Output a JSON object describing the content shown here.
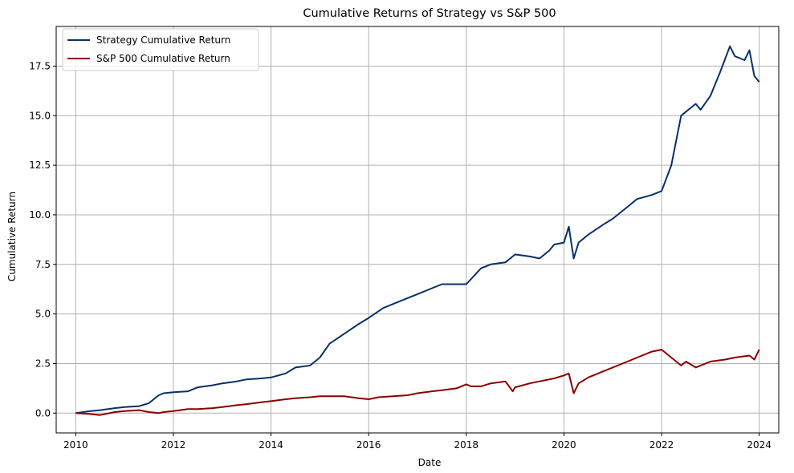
{
  "chart_data": {
    "type": "line",
    "title": "Cumulative Returns of Strategy vs S&P 500",
    "xlabel": "Date",
    "ylabel": "Cumulative Return",
    "xlim": [
      2009.6,
      2024.4
    ],
    "ylim": [
      -1.0,
      19.5
    ],
    "x_ticks": [
      2010,
      2012,
      2014,
      2016,
      2018,
      2020,
      2022,
      2024
    ],
    "x_tick_labels": [
      "2010",
      "2012",
      "2014",
      "2016",
      "2018",
      "2020",
      "2022",
      "2024"
    ],
    "y_ticks": [
      0.0,
      2.5,
      5.0,
      7.5,
      10.0,
      12.5,
      15.0,
      17.5
    ],
    "y_tick_labels": [
      "0.0",
      "2.5",
      "5.0",
      "7.5",
      "10.0",
      "12.5",
      "15.0",
      "17.5"
    ],
    "grid": true,
    "legend_position": "top-left",
    "series": [
      {
        "name": "Strategy Cumulative Return",
        "color": "#08306b",
        "x": [
          2010.0,
          2010.3,
          2010.5,
          2010.8,
          2011.0,
          2011.3,
          2011.5,
          2011.7,
          2011.8,
          2012.0,
          2012.3,
          2012.5,
          2012.8,
          2013.0,
          2013.3,
          2013.5,
          2013.8,
          2014.0,
          2014.3,
          2014.5,
          2014.8,
          2015.0,
          2015.2,
          2015.5,
          2015.8,
          2016.0,
          2016.3,
          2016.5,
          2016.8,
          2017.0,
          2017.3,
          2017.5,
          2017.8,
          2018.0,
          2018.3,
          2018.5,
          2018.8,
          2019.0,
          2019.3,
          2019.5,
          2019.7,
          2019.8,
          2020.0,
          2020.1,
          2020.2,
          2020.3,
          2020.5,
          2020.8,
          2021.0,
          2021.3,
          2021.5,
          2021.8,
          2022.0,
          2022.2,
          2022.4,
          2022.5,
          2022.7,
          2022.8,
          2023.0,
          2023.2,
          2023.4,
          2023.5,
          2023.7,
          2023.8,
          2023.9,
          2024.0
        ],
        "values": [
          0.0,
          0.1,
          0.15,
          0.25,
          0.3,
          0.35,
          0.5,
          0.9,
          1.0,
          1.05,
          1.1,
          1.3,
          1.4,
          1.5,
          1.6,
          1.7,
          1.75,
          1.8,
          2.0,
          2.3,
          2.4,
          2.8,
          3.5,
          4.0,
          4.5,
          4.8,
          5.3,
          5.5,
          5.8,
          6.0,
          6.3,
          6.5,
          6.5,
          6.5,
          7.3,
          7.5,
          7.6,
          8.0,
          7.9,
          7.8,
          8.2,
          8.5,
          8.6,
          9.4,
          7.8,
          8.6,
          9.0,
          9.5,
          9.8,
          10.4,
          10.8,
          11.0,
          11.2,
          12.5,
          15.0,
          15.2,
          15.6,
          15.3,
          16.0,
          17.2,
          18.5,
          18.0,
          17.8,
          18.3,
          17.0,
          16.7
        ]
      },
      {
        "name": "S&P 500 Cumulative Return",
        "color": "#8b0000",
        "x": [
          2010.0,
          2010.3,
          2010.5,
          2010.8,
          2011.0,
          2011.3,
          2011.5,
          2011.7,
          2011.8,
          2012.0,
          2012.3,
          2012.5,
          2012.8,
          2013.0,
          2013.3,
          2013.5,
          2013.8,
          2014.0,
          2014.3,
          2014.5,
          2014.8,
          2015.0,
          2015.3,
          2015.5,
          2015.8,
          2016.0,
          2016.2,
          2016.5,
          2016.8,
          2017.0,
          2017.3,
          2017.5,
          2017.8,
          2018.0,
          2018.1,
          2018.3,
          2018.5,
          2018.8,
          2018.95,
          2019.0,
          2019.3,
          2019.5,
          2019.8,
          2020.0,
          2020.1,
          2020.2,
          2020.3,
          2020.5,
          2020.8,
          2021.0,
          2021.3,
          2021.5,
          2021.8,
          2022.0,
          2022.2,
          2022.4,
          2022.5,
          2022.7,
          2022.8,
          2023.0,
          2023.3,
          2023.5,
          2023.8,
          2023.9,
          2024.0
        ],
        "values": [
          0.0,
          -0.05,
          -0.1,
          0.05,
          0.1,
          0.15,
          0.05,
          0.0,
          0.05,
          0.1,
          0.2,
          0.2,
          0.25,
          0.3,
          0.4,
          0.45,
          0.55,
          0.6,
          0.7,
          0.75,
          0.8,
          0.85,
          0.85,
          0.85,
          0.75,
          0.7,
          0.8,
          0.85,
          0.9,
          1.0,
          1.1,
          1.15,
          1.25,
          1.45,
          1.35,
          1.35,
          1.5,
          1.6,
          1.1,
          1.3,
          1.5,
          1.6,
          1.75,
          1.9,
          2.0,
          1.0,
          1.5,
          1.8,
          2.1,
          2.3,
          2.6,
          2.8,
          3.1,
          3.2,
          2.8,
          2.4,
          2.6,
          2.3,
          2.4,
          2.6,
          2.7,
          2.8,
          2.9,
          2.7,
          3.2
        ]
      }
    ]
  }
}
